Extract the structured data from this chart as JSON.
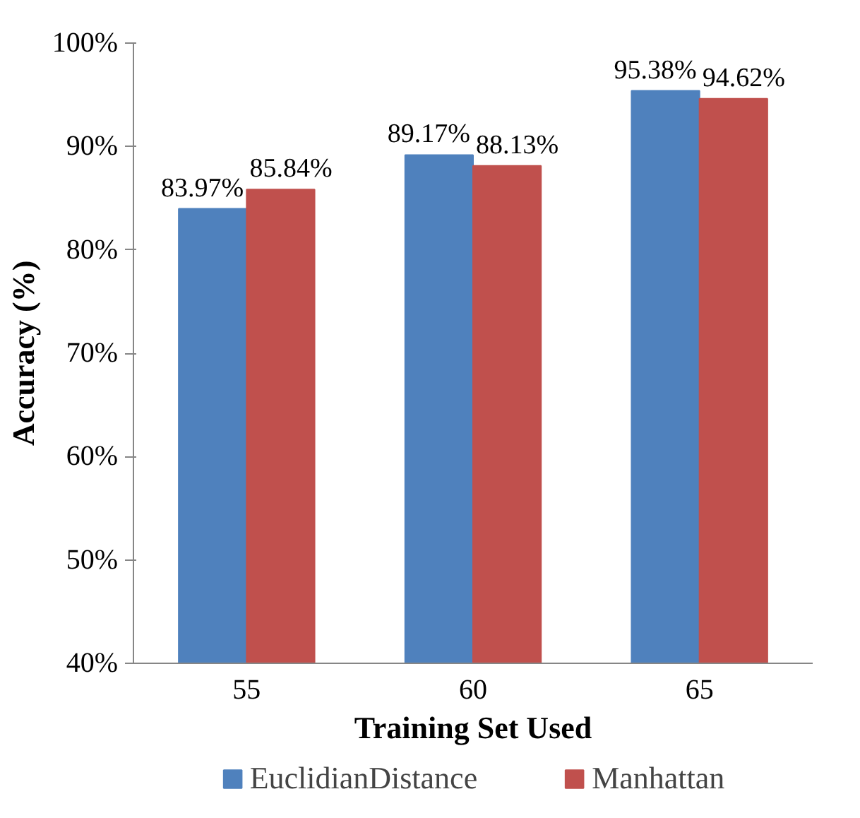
{
  "chart_data": {
    "type": "bar",
    "xlabel": "Training Set Used",
    "ylabel": "Accuracy (%)",
    "categories": [
      "55",
      "60",
      "65"
    ],
    "series": [
      {
        "name": "EuclidianDistance",
        "color": "#4f81bd",
        "values": [
          83.97,
          89.17,
          95.38
        ],
        "value_labels": [
          "83.97%",
          "89.17%",
          "95.38%"
        ]
      },
      {
        "name": "Manhattan",
        "color": "#c0504d",
        "values": [
          85.84,
          88.13,
          94.62
        ],
        "value_labels": [
          "85.84%",
          "88.13%",
          "94.62%"
        ]
      }
    ],
    "ylim": [
      40,
      100
    ],
    "yticks": [
      {
        "value": 40,
        "label": "40%"
      },
      {
        "value": 50,
        "label": "50%"
      },
      {
        "value": 60,
        "label": "60%"
      },
      {
        "value": 70,
        "label": "70%"
      },
      {
        "value": 80,
        "label": "80%"
      },
      {
        "value": 90,
        "label": "90%"
      },
      {
        "value": 100,
        "label": "100%"
      }
    ],
    "grid": false,
    "legend": "bottom"
  }
}
